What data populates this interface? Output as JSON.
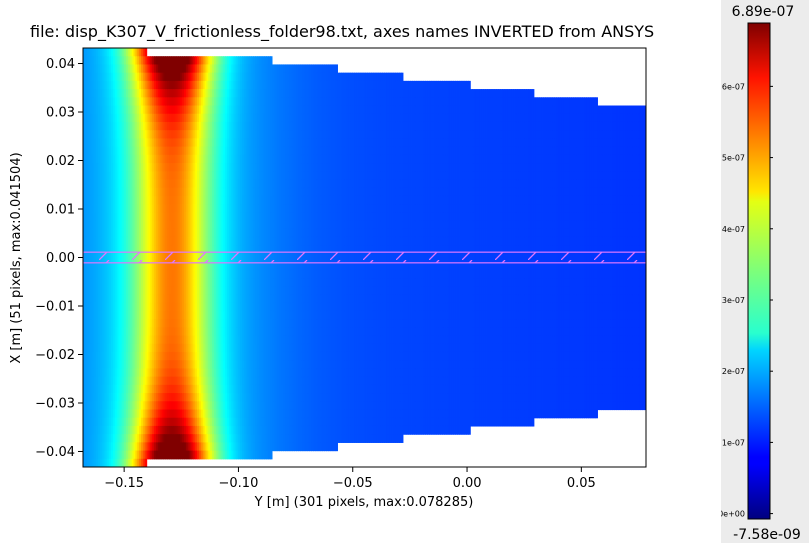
{
  "chart_data": {
    "type": "heatmap",
    "title": "file: disp_K307_V_frictionless_folder98.txt, axes names INVERTED from ANSYS",
    "xlabel": "Y [m] (301 pixels, max:0.078285)",
    "ylabel": "X [m] (51 pixels, max:0.041504)",
    "xlim": [
      -0.168,
      0.078285
    ],
    "ylim": [
      -0.0432,
      0.0432
    ],
    "xticks": [
      -0.15,
      -0.1,
      -0.05,
      0.0,
      0.05
    ],
    "xtick_labels": [
      "−0.15",
      "−0.10",
      "−0.05",
      "0.00",
      "0.05"
    ],
    "yticks": [
      0.04,
      0.03,
      0.02,
      0.01,
      0.0,
      -0.01,
      -0.02,
      -0.03,
      -0.04
    ],
    "ytick_labels": [
      "0.04",
      "0.03",
      "0.02",
      "0.01",
      "0.00",
      "−0.01",
      "−0.02",
      "−0.03",
      "−0.04"
    ],
    "colormap": "jet",
    "colorbar": {
      "vmin": -7.58e-09,
      "vmax": 6.89e-07,
      "top_label": "6.89e-07",
      "bottom_label": "-7.58e-09",
      "ticks": [
        0,
        1e-07,
        2e-07,
        3e-07,
        4e-07,
        5e-07,
        6e-07
      ],
      "tick_labels": [
        "0e+00",
        "1e-07",
        "2e-07",
        "3e-07",
        "4e-07",
        "5e-07",
        "6e-07"
      ]
    },
    "peak_center_y": -0.129,
    "stepped_boundary": [
      {
        "y_start": -0.168,
        "y_end": -0.1405,
        "x_half_width": 0.0432
      },
      {
        "y_start": -0.1405,
        "y_end": -0.113,
        "x_half_width": 0.0415
      },
      {
        "y_start": -0.113,
        "y_end": -0.085,
        "x_half_width": 0.0405
      },
      {
        "y_start": -0.085,
        "y_end": -0.057,
        "x_half_width": 0.0392
      },
      {
        "y_start": -0.057,
        "y_end": -0.028,
        "x_half_width": 0.0378
      },
      {
        "y_start": -0.028,
        "y_end": 0.001,
        "x_half_width": 0.0363
      },
      {
        "y_start": 0.001,
        "y_end": 0.029,
        "x_half_width": 0.0348
      },
      {
        "y_start": 0.029,
        "y_end": 0.057,
        "x_half_width": 0.0332
      },
      {
        "y_start": 0.057,
        "y_end": 0.078285,
        "x_half_width": 0.0313
      }
    ],
    "hatched_band": {
      "x_min": -0.0011,
      "x_max": 0.0011,
      "color": "#dd77ff"
    }
  }
}
